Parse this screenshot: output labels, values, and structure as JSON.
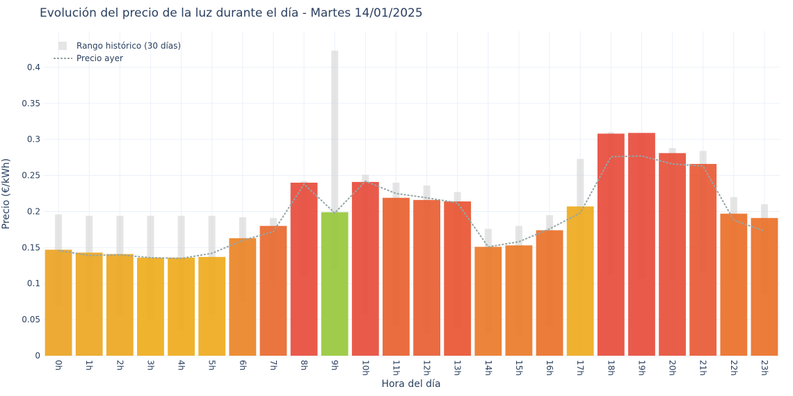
{
  "chart_data": {
    "type": "bar",
    "title": "Evolución del precio de la luz durante el día - Martes 14/01/2025",
    "xlabel": "Hora del día",
    "ylabel": "Precio (€/kWh)",
    "ylim": [
      0,
      0.45
    ],
    "yticks": [
      0,
      0.05,
      0.1,
      0.15,
      0.2,
      0.25,
      0.3,
      0.35,
      0.4
    ],
    "ytick_labels": [
      "0",
      "0.05",
      "0.1",
      "0.15",
      "0.2",
      "0.25",
      "0.3",
      "0.35",
      "0.4"
    ],
    "grid": true,
    "legend_position": "top-left",
    "categories": [
      "0h",
      "1h",
      "2h",
      "3h",
      "4h",
      "5h",
      "6h",
      "7h",
      "8h",
      "9h",
      "10h",
      "11h",
      "12h",
      "13h",
      "14h",
      "15h",
      "16h",
      "17h",
      "18h",
      "19h",
      "20h",
      "21h",
      "22h",
      "23h"
    ],
    "values": [
      0.147,
      0.143,
      0.141,
      0.136,
      0.136,
      0.137,
      0.163,
      0.18,
      0.24,
      0.199,
      0.241,
      0.219,
      0.216,
      0.214,
      0.151,
      0.153,
      0.174,
      0.207,
      0.308,
      0.309,
      0.281,
      0.266,
      0.197,
      0.191
    ],
    "bar_colors": [
      "#eba424",
      "#eca722",
      "#eda721",
      "#efac1c",
      "#efab1c",
      "#eeaa1d",
      "#ea8426",
      "#e8692f",
      "#e74c3c",
      "#98c83c",
      "#e74c3c",
      "#e8612f",
      "#e85d32",
      "#e85532",
      "#ea792a",
      "#ea7928",
      "#ea7129",
      "#eeaa1d",
      "#e74c3c",
      "#e74c3c",
      "#e7503a",
      "#e85a35",
      "#ea7029",
      "#ea7129"
    ],
    "series": [
      {
        "name": "Rango histórico (30 días)",
        "type": "range",
        "color": "#d3d3d3",
        "low": [
          0.069,
          0.062,
          0.055,
          0.051,
          0.035,
          0.056,
          0.075,
          0.104,
          0.108,
          0.12,
          0.057,
          0.041,
          0.032,
          0.038,
          0.03,
          0.028,
          0.041,
          0.106,
          0.112,
          0.108,
          0.107,
          0.116,
          0.104,
          0.087
        ],
        "high": [
          0.196,
          0.194,
          0.194,
          0.194,
          0.194,
          0.194,
          0.192,
          0.191,
          0.242,
          0.423,
          0.251,
          0.24,
          0.236,
          0.227,
          0.176,
          0.18,
          0.195,
          0.273,
          0.31,
          0.309,
          0.288,
          0.284,
          0.22,
          0.21
        ]
      },
      {
        "name": "Precio ayer",
        "type": "line",
        "color": "#95a5a6",
        "values": [
          0.146,
          0.139,
          0.14,
          0.136,
          0.135,
          0.142,
          0.16,
          0.172,
          0.238,
          0.198,
          0.242,
          0.225,
          0.219,
          0.212,
          0.151,
          0.158,
          0.176,
          0.198,
          0.276,
          0.277,
          0.266,
          0.263,
          0.188,
          0.173
        ]
      }
    ]
  }
}
